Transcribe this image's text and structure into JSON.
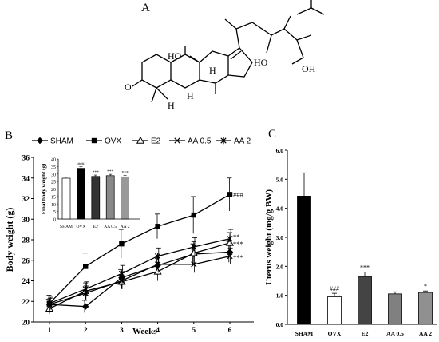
{
  "panels": {
    "a": "A",
    "b": "B",
    "c": "C"
  },
  "structure": {
    "atom_labels": [
      "HO",
      "O",
      "HO",
      "OH",
      "H",
      "H",
      "H"
    ],
    "description": "chemical structure drawing"
  },
  "chart_data": [
    {
      "type": "line",
      "xlabel": "Weeks",
      "ylabel": "Body weight (g)",
      "x": [
        1,
        2,
        3,
        4,
        5,
        6
      ],
      "ylim": [
        20,
        36
      ],
      "yticks": [
        20,
        22,
        24,
        26,
        28,
        30,
        32,
        34,
        36
      ],
      "legend_position": "top",
      "series": [
        {
          "name": "SHAM",
          "marker": "diamond",
          "values": [
            21.7,
            21.5,
            24.3,
            25.5,
            26.6,
            26.8
          ],
          "err": [
            0.5,
            0.6,
            0.8,
            0.9,
            1.0,
            1.0
          ]
        },
        {
          "name": "OVX",
          "marker": "square",
          "values": [
            21.8,
            25.4,
            27.6,
            29.3,
            30.4,
            32.4
          ],
          "err": [
            0.8,
            1.3,
            1.4,
            1.2,
            1.8,
            1.6
          ]
        },
        {
          "name": "E2",
          "marker": "triangle",
          "values": [
            21.3,
            23.0,
            23.9,
            24.9,
            26.7,
            27.7
          ],
          "err": [
            0.5,
            0.8,
            0.7,
            0.9,
            1.1,
            1.0
          ]
        },
        {
          "name": "AA 0.5",
          "marker": "x",
          "values": [
            21.7,
            22.8,
            24.0,
            25.6,
            25.6,
            26.4
          ],
          "err": [
            0.6,
            0.7,
            0.8,
            0.8,
            0.8,
            0.8
          ]
        },
        {
          "name": "AA 2",
          "marker": "asterisk",
          "values": [
            21.8,
            23.2,
            24.7,
            26.4,
            27.3,
            28.1
          ],
          "err": [
            0.6,
            0.7,
            0.8,
            0.8,
            0.9,
            0.9
          ]
        }
      ],
      "annotations": [
        {
          "x": 6,
          "y": 32.4,
          "text": "###"
        },
        {
          "x": 6,
          "y": 28.3,
          "text": "**"
        },
        {
          "x": 6,
          "y": 27.6,
          "text": "***"
        },
        {
          "x": 6,
          "y": 26.3,
          "text": "***"
        }
      ]
    },
    {
      "type": "bar",
      "inset": true,
      "ylabel": "Final body weight (g)",
      "ylim": [
        0,
        40
      ],
      "yticks": [
        0,
        5,
        10,
        15,
        20,
        25,
        30,
        35,
        40
      ],
      "categories": [
        "SHAM",
        "OVX",
        "E2",
        "AA 0.5",
        "AA 2"
      ],
      "values": [
        27.2,
        33.8,
        28.4,
        28.9,
        28.1
      ],
      "err": [
        0.8,
        1.0,
        0.9,
        0.9,
        0.9
      ],
      "fills": [
        "#ffffff",
        "#000000",
        "#333333",
        "#888888",
        "#999999"
      ],
      "annotations": [
        "",
        "###",
        "***",
        "***",
        "***"
      ]
    },
    {
      "type": "bar",
      "ylabel": "Uterus weight (mg/g BW)",
      "ylim": [
        0,
        6
      ],
      "yticks": [
        "0.0",
        "1.0",
        "2.0",
        "3.0",
        "4.0",
        "5.0",
        "6.0"
      ],
      "categories": [
        "SHAM",
        "OVX",
        "E2",
        "AA 0.5",
        "AA 2"
      ],
      "values": [
        4.42,
        0.95,
        1.65,
        1.05,
        1.1
      ],
      "err": [
        0.8,
        0.12,
        0.15,
        0.07,
        0.05
      ],
      "fills": [
        "#000000",
        "#ffffff",
        "#444444",
        "#808080",
        "#909090"
      ],
      "annotations": [
        "",
        "###",
        "***",
        "",
        "*"
      ]
    }
  ],
  "colors": {
    "ink": "#000000",
    "background": "#ffffff"
  }
}
